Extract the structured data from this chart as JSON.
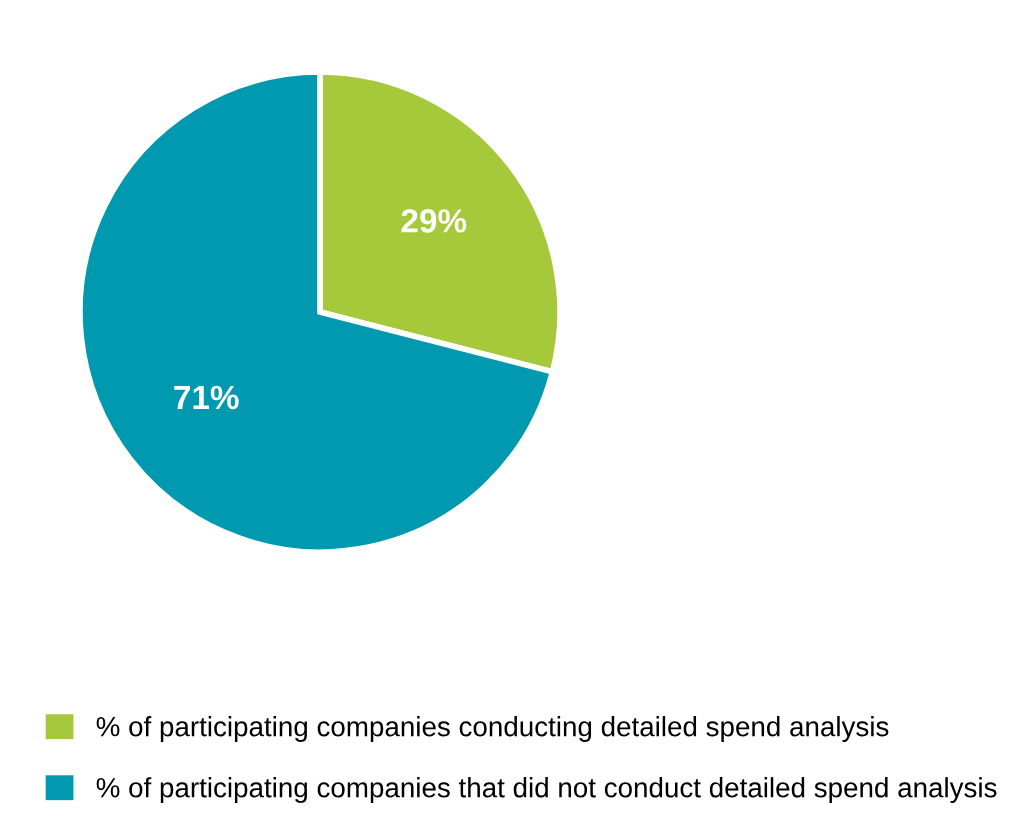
{
  "chart_data": {
    "type": "pie",
    "categories": [
      "% of participating companies conducting detailed spend analysis",
      "% of participating companies that did not conduct detailed spend analysis"
    ],
    "values": [
      29,
      71
    ],
    "colors": [
      "#a5c93a",
      "#0099b0"
    ],
    "value_labels": [
      "29%",
      "71%"
    ],
    "legend": "bottom"
  }
}
